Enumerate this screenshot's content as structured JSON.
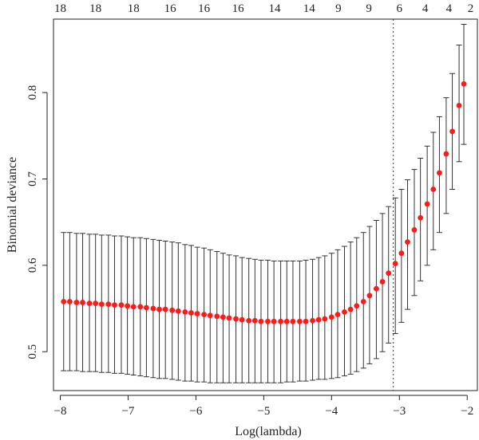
{
  "chart_data": {
    "type": "scatter",
    "title": "",
    "xlabel": "Log(lambda)",
    "ylabel": "Binomial deviance",
    "xlim": [
      -8.1,
      -1.85
    ],
    "ylim": [
      0.455,
      0.885
    ],
    "x_ticks": [
      -8,
      -7,
      -6,
      -5,
      -4,
      -3,
      -2
    ],
    "x_tick_labels": [
      "−8",
      "−7",
      "−6",
      "−5",
      "−4",
      "−3",
      "−2"
    ],
    "y_ticks": [
      0.5,
      0.6,
      0.7,
      0.8
    ],
    "y_tick_labels": [
      "0.5",
      "0.6",
      "0.7",
      "0.8"
    ],
    "top_axis": {
      "positions": [
        -8.0,
        -7.48,
        -6.92,
        -6.38,
        -5.88,
        -5.38,
        -4.84,
        -4.33,
        -3.9,
        -3.45,
        -3.0,
        -2.62,
        -2.27,
        -1.95
      ],
      "labels": [
        "18",
        "18",
        "18",
        "16",
        "16",
        "16",
        "14",
        "14",
        "9",
        "9",
        "6",
        "4",
        "4",
        "2"
      ]
    },
    "vline_x": -3.09,
    "point_color": "#ff1a1a",
    "grid": false,
    "series": [
      {
        "x": [
          -7.95,
          -7.86,
          -7.76,
          -7.67,
          -7.57,
          -7.48,
          -7.39,
          -7.29,
          -7.2,
          -7.1,
          -7.01,
          -6.92,
          -6.82,
          -6.73,
          -6.63,
          -6.54,
          -6.45,
          -6.35,
          -6.26,
          -6.16,
          -6.07,
          -5.98,
          -5.88,
          -5.79,
          -5.69,
          -5.6,
          -5.51,
          -5.41,
          -5.32,
          -5.22,
          -5.13,
          -5.04,
          -4.94,
          -4.85,
          -4.75,
          -4.66,
          -4.57,
          -4.47,
          -4.38,
          -4.28,
          -4.19,
          -4.1,
          -4.0,
          -3.91,
          -3.81,
          -3.72,
          -3.63,
          -3.53,
          -3.44,
          -3.34,
          -3.25,
          -3.16,
          -3.06,
          -2.97,
          -2.88,
          -2.78,
          -2.69,
          -2.59,
          -2.5,
          -2.41,
          -2.31,
          -2.22,
          -2.12,
          -2.05
        ],
        "y": [
          0.558,
          0.558,
          0.557,
          0.557,
          0.556,
          0.556,
          0.555,
          0.555,
          0.554,
          0.554,
          0.553,
          0.552,
          0.552,
          0.551,
          0.55,
          0.549,
          0.549,
          0.548,
          0.547,
          0.546,
          0.545,
          0.544,
          0.543,
          0.542,
          0.541,
          0.54,
          0.539,
          0.538,
          0.537,
          0.536,
          0.536,
          0.535,
          0.535,
          0.535,
          0.535,
          0.535,
          0.535,
          0.535,
          0.535,
          0.536,
          0.537,
          0.538,
          0.54,
          0.543,
          0.546,
          0.549,
          0.553,
          0.558,
          0.565,
          0.573,
          0.581,
          0.591,
          0.602,
          0.614,
          0.627,
          0.641,
          0.655,
          0.671,
          0.688,
          0.707,
          0.729,
          0.755,
          0.785,
          0.81
        ],
        "upper": [
          0.638,
          0.638,
          0.637,
          0.637,
          0.636,
          0.636,
          0.635,
          0.635,
          0.634,
          0.634,
          0.633,
          0.632,
          0.632,
          0.631,
          0.63,
          0.629,
          0.628,
          0.627,
          0.626,
          0.624,
          0.623,
          0.621,
          0.62,
          0.618,
          0.616,
          0.614,
          0.612,
          0.611,
          0.609,
          0.608,
          0.607,
          0.606,
          0.606,
          0.605,
          0.605,
          0.605,
          0.605,
          0.605,
          0.606,
          0.607,
          0.609,
          0.611,
          0.614,
          0.618,
          0.622,
          0.627,
          0.632,
          0.638,
          0.645,
          0.652,
          0.66,
          0.668,
          0.678,
          0.688,
          0.699,
          0.711,
          0.724,
          0.738,
          0.754,
          0.772,
          0.794,
          0.822,
          0.855,
          0.879
        ],
        "lower": [
          0.478,
          0.478,
          0.478,
          0.477,
          0.477,
          0.477,
          0.476,
          0.476,
          0.475,
          0.475,
          0.474,
          0.473,
          0.472,
          0.471,
          0.47,
          0.469,
          0.469,
          0.468,
          0.467,
          0.466,
          0.466,
          0.465,
          0.465,
          0.464,
          0.464,
          0.464,
          0.464,
          0.464,
          0.464,
          0.464,
          0.464,
          0.464,
          0.464,
          0.464,
          0.464,
          0.465,
          0.465,
          0.466,
          0.466,
          0.467,
          0.468,
          0.468,
          0.469,
          0.47,
          0.472,
          0.474,
          0.477,
          0.481,
          0.486,
          0.492,
          0.5,
          0.51,
          0.521,
          0.534,
          0.549,
          0.565,
          0.582,
          0.6,
          0.618,
          0.638,
          0.66,
          0.688,
          0.72,
          0.74
        ]
      }
    ]
  }
}
